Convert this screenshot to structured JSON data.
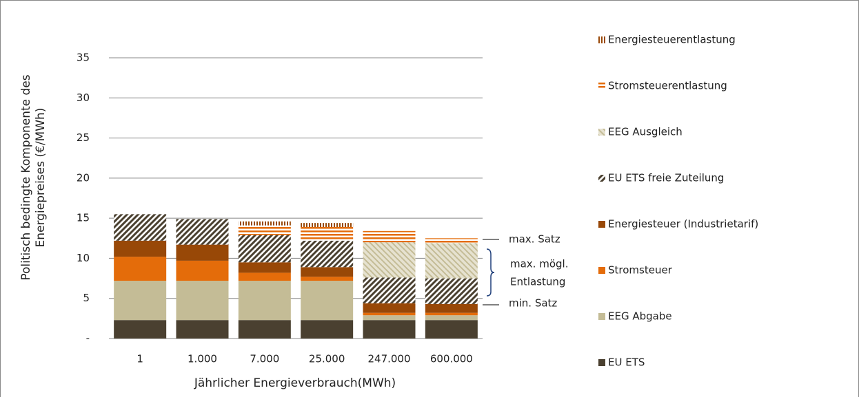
{
  "chart_data": {
    "type": "stacked_bar",
    "y_label": [
      "Politisch bedingte Komponente des",
      "Energiepreises (€/MWh)"
    ],
    "x_label": "Jährlicher Energieverbrauch(MWh)",
    "categories": [
      "1",
      "1.000",
      "7.000",
      "25.000",
      "247.000",
      "600.000"
    ],
    "series": [
      {
        "name": "EU ETS",
        "color": "#4a4030",
        "pattern": "solid",
        "values": [
          2.3,
          2.3,
          2.3,
          2.3,
          2.3,
          2.3
        ]
      },
      {
        "name": "EEG Abgabe",
        "color": "#c4bc96",
        "pattern": "solid",
        "values": [
          4.9,
          4.9,
          4.9,
          4.9,
          0.6,
          0.6
        ]
      },
      {
        "name": "Stromsteuer",
        "color": "#e46c0a",
        "pattern": "solid",
        "values": [
          3.0,
          2.5,
          1.0,
          0.5,
          0.3,
          0.3
        ]
      },
      {
        "name": "Energiesteuer (Industrietarif)",
        "color": "#984807",
        "pattern": "solid",
        "values": [
          2.0,
          2.0,
          1.3,
          1.2,
          1.2,
          1.1
        ]
      },
      {
        "name": "EU ETS freie Zuteilung",
        "color": "#4a4030",
        "background": "#ffffff",
        "pattern": "diag-up",
        "values": [
          3.3,
          3.2,
          3.4,
          3.3,
          3.2,
          3.2
        ]
      },
      {
        "name": "EEG Ausgleich",
        "color": "#c4bc96",
        "background": "#e6e2d0",
        "pattern": "diag-down",
        "values": [
          0,
          0,
          0,
          0,
          4.4,
          4.4
        ]
      },
      {
        "name": "Stromsteuerentlastung",
        "color": "#e46c0a",
        "background": "#ffffff",
        "pattern": "horizontal",
        "values": [
          0,
          0,
          1.2,
          1.7,
          1.4,
          0.6
        ]
      },
      {
        "name": "Energiesteuerentlastung",
        "color": "#984807",
        "background": "#ffffff",
        "pattern": "vertical",
        "values": [
          0,
          0,
          0.5,
          0.5,
          0,
          0
        ]
      }
    ],
    "ylim": [
      0,
      35
    ],
    "yticks": [
      {
        "value": 0,
        "label": "-"
      },
      5,
      10,
      15,
      20,
      25,
      30,
      35
    ],
    "grid": true,
    "legend": "right",
    "annotations": {
      "max": "max. Satz",
      "range": [
        "max. mögl.",
        "Entlastung"
      ],
      "min": "min. Satz"
    }
  }
}
